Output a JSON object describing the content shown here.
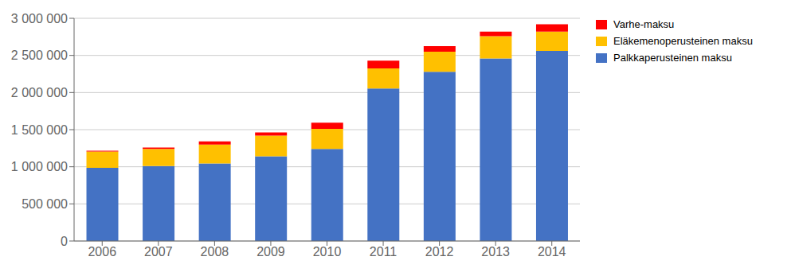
{
  "chart_data": {
    "type": "bar",
    "stacked": true,
    "categories": [
      "2006",
      "2007",
      "2008",
      "2009",
      "2010",
      "2011",
      "2012",
      "2013",
      "2014"
    ],
    "series": [
      {
        "name": "Palkkaperusteinen maksu",
        "color": "#4472C4",
        "values": [
          985000,
          1010000,
          1045000,
          1140000,
          1240000,
          2055000,
          2280000,
          2460000,
          2560000
        ]
      },
      {
        "name": "Eläkemenoperusteinen maksu",
        "color": "#FFC000",
        "values": [
          220000,
          230000,
          255000,
          280000,
          270000,
          270000,
          270000,
          300000,
          260000
        ]
      },
      {
        "name": "Varhe-maksu",
        "color": "#FF0000",
        "values": [
          12000,
          18000,
          42000,
          42000,
          85000,
          105000,
          75000,
          60000,
          100000
        ]
      }
    ],
    "ylim": [
      0,
      3000000
    ],
    "yticks": [
      0,
      {
        "value": 500000,
        "label": "500 000"
      },
      {
        "value": 1000000,
        "label": "1 000 000"
      },
      {
        "value": 1500000,
        "label": "1 500 000"
      },
      {
        "value": 2000000,
        "label": "2 000 000"
      },
      {
        "value": 2500000,
        "label": "2 500 000"
      },
      {
        "value": 3000000,
        "label": "3 000 000"
      }
    ],
    "grid": true,
    "legend": "upper right"
  }
}
